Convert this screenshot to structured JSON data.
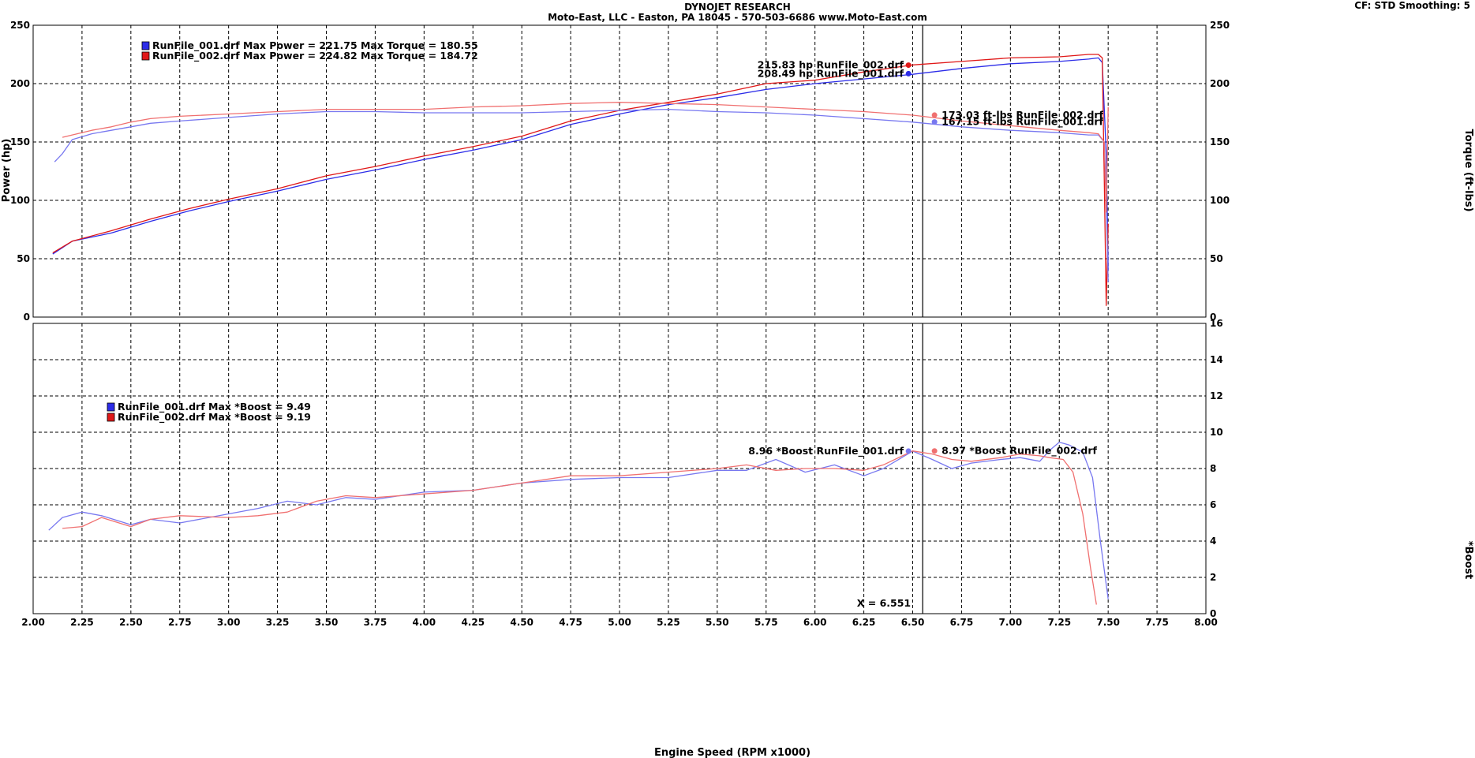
{
  "header": {
    "title": "DYNOJET RESEARCH",
    "subtitle": "Moto-East, LLC - Easton, PA 18045 - 570-503-6686 www.Moto-East.com",
    "settings": "CF: STD  Smoothing: 5"
  },
  "colors": {
    "run1": "#2c2ce8",
    "run2": "#e01818",
    "run1_light": "#7878f0",
    "run2_light": "#f07070"
  },
  "chart_data": [
    {
      "type": "line",
      "title": "",
      "xlabel": "Engine Speed (RPM x1000)",
      "ylabel": "Power (hp)",
      "y2label": "Torque (ft-lbs)",
      "xlim": [
        2.0,
        8.0
      ],
      "ylim": [
        0,
        250
      ],
      "y2lim": [
        0,
        250
      ],
      "x_ticks": [
        "2.00",
        "2.25",
        "2.50",
        "2.75",
        "3.00",
        "3.25",
        "3.50",
        "3.75",
        "4.00",
        "4.25",
        "4.50",
        "4.75",
        "5.00",
        "5.25",
        "5.50",
        "5.75",
        "6.00",
        "6.25",
        "6.50",
        "6.75",
        "7.00",
        "7.25",
        "7.50",
        "7.75",
        "8.00"
      ],
      "y_ticks": [
        "0",
        "50",
        "100",
        "150",
        "200",
        "250"
      ],
      "grid": true,
      "cursor_x": 6.551,
      "legend": [
        "RunFile_001.drf Max Power = 221.75     Max Torque = 180.55",
        "RunFile_002.drf Max Power = 224.82     Max Torque = 184.72"
      ],
      "annotations": [
        {
          "label": "215.83 hp RunFile_002.drf",
          "series": "RunFile_002.drf Power",
          "x": 6.551,
          "y": 215.83
        },
        {
          "label": "208.49 hp RunFile_001.drf",
          "series": "RunFile_001.drf Power",
          "x": 6.551,
          "y": 208.49
        },
        {
          "label": "173.03 ft-lbs RunFile_002.drf",
          "series": "RunFile_002.drf Torque",
          "x": 6.551,
          "y": 173.03
        },
        {
          "label": "167.15 ft-lbs RunFile_001.drf",
          "series": "RunFile_001.drf Torque",
          "x": 6.551,
          "y": 167.15
        }
      ],
      "series": [
        {
          "name": "RunFile_001.drf Power",
          "axis": "left",
          "color": "#2c2ce8",
          "x": [
            2.1,
            2.2,
            2.4,
            2.6,
            2.8,
            3.0,
            3.25,
            3.5,
            3.75,
            4.0,
            4.25,
            4.5,
            4.75,
            5.0,
            5.25,
            5.5,
            5.75,
            6.0,
            6.25,
            6.5,
            6.75,
            7.0,
            7.25,
            7.4,
            7.45,
            7.47,
            7.49,
            7.5
          ],
          "y": [
            54,
            65,
            72,
            82,
            91,
            99,
            108,
            118,
            126,
            135,
            143,
            152,
            165,
            174,
            182,
            188,
            195,
            200,
            204,
            208,
            213,
            217,
            219,
            221,
            222,
            218,
            140,
            40
          ]
        },
        {
          "name": "RunFile_002.drf Power",
          "axis": "left",
          "color": "#e01818",
          "x": [
            2.1,
            2.2,
            2.4,
            2.6,
            2.8,
            3.0,
            3.25,
            3.5,
            3.75,
            4.0,
            4.25,
            4.5,
            4.75,
            5.0,
            5.25,
            5.5,
            5.75,
            6.0,
            6.25,
            6.5,
            6.75,
            7.0,
            7.25,
            7.4,
            7.45,
            7.47,
            7.48,
            7.49,
            7.5
          ],
          "y": [
            55,
            65,
            74,
            84,
            93,
            101,
            110,
            121,
            129,
            138,
            146,
            155,
            168,
            177,
            184,
            191,
            200,
            203,
            210,
            216,
            219,
            222,
            223,
            225,
            225,
            222,
            120,
            10,
            80
          ]
        },
        {
          "name": "RunFile_001.drf Torque",
          "axis": "right",
          "color": "#7878f0",
          "x": [
            2.11,
            2.15,
            2.2,
            2.3,
            2.4,
            2.5,
            2.6,
            2.75,
            3.0,
            3.25,
            3.5,
            3.75,
            4.0,
            4.25,
            4.5,
            4.75,
            5.0,
            5.25,
            5.5,
            5.75,
            6.0,
            6.25,
            6.5,
            6.75,
            7.0,
            7.25,
            7.4,
            7.45,
            7.48,
            7.49,
            7.5
          ],
          "y": [
            133,
            140,
            152,
            157,
            160,
            163,
            166,
            168,
            171,
            174,
            176,
            176,
            175,
            175,
            175,
            176,
            177,
            178,
            176,
            175,
            173,
            170,
            167,
            163,
            160,
            158,
            156,
            156,
            150,
            100,
            30
          ]
        },
        {
          "name": "RunFile_002.drf Torque",
          "axis": "right",
          "color": "#f07070",
          "x": [
            2.15,
            2.2,
            2.3,
            2.4,
            2.5,
            2.6,
            2.75,
            3.0,
            3.25,
            3.5,
            3.75,
            4.0,
            4.25,
            4.5,
            4.75,
            5.0,
            5.25,
            5.5,
            5.75,
            6.0,
            6.25,
            6.5,
            6.75,
            7.0,
            7.25,
            7.4,
            7.45,
            7.48,
            7.49,
            7.5
          ],
          "y": [
            154,
            156,
            160,
            163,
            167,
            170,
            172,
            174,
            176,
            178,
            178,
            178,
            180,
            181,
            183,
            184,
            183,
            182,
            180,
            178,
            176,
            173,
            168,
            164,
            160,
            158,
            157,
            150,
            90,
            180
          ]
        }
      ]
    },
    {
      "type": "line",
      "title": "",
      "xlabel": "Engine Speed (RPM x1000)",
      "ylabel": "*Boost",
      "xlim": [
        2.0,
        8.0
      ],
      "ylim": [
        0,
        16
      ],
      "x_ticks": [
        "2.00",
        "2.25",
        "2.50",
        "2.75",
        "3.00",
        "3.25",
        "3.50",
        "3.75",
        "4.00",
        "4.25",
        "4.50",
        "4.75",
        "5.00",
        "5.25",
        "5.50",
        "5.75",
        "6.00",
        "6.25",
        "6.50",
        "6.75",
        "7.00",
        "7.25",
        "7.50",
        "7.75",
        "8.00"
      ],
      "y_ticks": [
        "0",
        "2",
        "4",
        "6",
        "8",
        "10",
        "12",
        "14",
        "16"
      ],
      "grid": true,
      "cursor_label": "X = 6.551",
      "cursor_x": 6.551,
      "legend": [
        "RunFile_001.drf Max *Boost = 9.49",
        "RunFile_002.drf Max *Boost = 9.19"
      ],
      "annotations": [
        {
          "label": "8.96 *Boost RunFile_001.drf",
          "series": "RunFile_001.drf *Boost",
          "x": 6.551,
          "y": 8.96
        },
        {
          "label": "8.97 *Boost RunFile_002.drf",
          "series": "RunFile_002.drf *Boost",
          "x": 6.551,
          "y": 8.97
        }
      ],
      "series": [
        {
          "name": "RunFile_001.drf *Boost",
          "color": "#7878f0",
          "x": [
            2.08,
            2.15,
            2.25,
            2.35,
            2.5,
            2.6,
            2.75,
            3.0,
            3.15,
            3.3,
            3.45,
            3.6,
            3.75,
            4.0,
            4.25,
            4.5,
            4.75,
            5.0,
            5.25,
            5.5,
            5.65,
            5.8,
            5.95,
            6.1,
            6.25,
            6.35,
            6.5,
            6.6,
            6.7,
            6.8,
            6.95,
            7.05,
            7.15,
            7.2,
            7.25,
            7.3,
            7.37,
            7.42,
            7.46,
            7.5
          ],
          "y": [
            4.6,
            5.3,
            5.6,
            5.4,
            4.9,
            5.2,
            5.0,
            5.5,
            5.8,
            6.2,
            6.0,
            6.4,
            6.3,
            6.7,
            6.8,
            7.2,
            7.4,
            7.5,
            7.5,
            7.9,
            7.9,
            8.5,
            7.8,
            8.2,
            7.6,
            8.0,
            8.96,
            8.5,
            8.0,
            8.3,
            8.5,
            8.6,
            8.4,
            9.0,
            9.45,
            9.3,
            8.9,
            7.5,
            4.0,
            0.8
          ]
        },
        {
          "name": "RunFile_002.drf *Boost",
          "color": "#f07070",
          "x": [
            2.15,
            2.25,
            2.35,
            2.5,
            2.6,
            2.75,
            3.0,
            3.15,
            3.3,
            3.45,
            3.6,
            3.75,
            4.0,
            4.25,
            4.5,
            4.75,
            5.0,
            5.25,
            5.5,
            5.65,
            5.8,
            5.95,
            6.1,
            6.25,
            6.35,
            6.5,
            6.6,
            6.7,
            6.8,
            6.95,
            7.05,
            7.15,
            7.2,
            7.27,
            7.32,
            7.37,
            7.41,
            7.44
          ],
          "y": [
            4.7,
            4.8,
            5.3,
            4.8,
            5.2,
            5.4,
            5.3,
            5.4,
            5.6,
            6.2,
            6.5,
            6.4,
            6.6,
            6.8,
            7.2,
            7.6,
            7.6,
            7.8,
            8.0,
            8.2,
            7.9,
            8.0,
            8.0,
            7.9,
            8.2,
            8.97,
            8.8,
            8.5,
            8.4,
            8.6,
            8.8,
            8.7,
            8.6,
            8.5,
            7.8,
            5.5,
            2.5,
            0.5
          ]
        }
      ]
    }
  ]
}
